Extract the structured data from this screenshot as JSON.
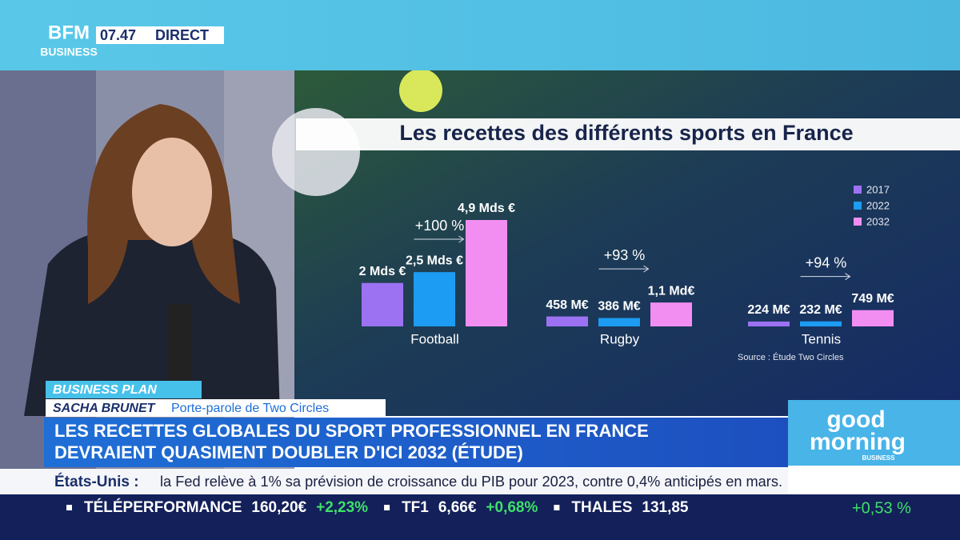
{
  "header": {
    "logo_top": "BFM",
    "logo_bottom": "BUSINESS",
    "time": "07.47",
    "status": "DIRECT"
  },
  "chart_data": {
    "type": "bar",
    "title": "Les recettes des différents sports en France",
    "categories": [
      "Football",
      "Rugby",
      "Tennis"
    ],
    "series": [
      {
        "name": "2017",
        "color": "#9d72f2",
        "values": [
          2000,
          458,
          224
        ],
        "value_labels": [
          "2 Mds €",
          "458 M€",
          "224 M€"
        ]
      },
      {
        "name": "2022",
        "color": "#1c9cf2",
        "values": [
          2500,
          386,
          232
        ],
        "value_labels": [
          "2,5 Mds €",
          "386 M€",
          "232 M€"
        ]
      },
      {
        "name": "2032",
        "color": "#f28ef2",
        "values": [
          4900,
          1100,
          749
        ],
        "value_labels": [
          "4,9 Mds €",
          "1,1 Md€",
          "749 M€"
        ]
      }
    ],
    "annotations": [
      "+100 %",
      "+93 %",
      "+94 %"
    ],
    "source": "Source : Étude Two Circles",
    "legend": "top-right"
  },
  "lower_third": {
    "program": "BUSINESS PLAN",
    "guest_name": "SACHA BRUNET",
    "guest_role": "Porte-parole de Two Circles",
    "headline": [
      "LES RECETTES GLOBALES DU SPORT PROFESSIONNEL EN FRANCE",
      "DEVRAIENT QUASIMENT DOUBLER D'ICI 2032 (ÉTUDE)"
    ]
  },
  "news_ticker": {
    "label": "États-Unis :",
    "text": "la Fed relève à 1% sa prévision de croissance du PIB pour 2023, contre 0,4% anticipés en mars."
  },
  "stock_ticker": [
    {
      "name": "TÉLÉPERFORMANCE",
      "price": "160,20€",
      "change": "+2,23%"
    },
    {
      "name": "TF1",
      "price": "6,66€",
      "change": "+0,68%"
    },
    {
      "name": "THALES",
      "price": "131,85"
    }
  ],
  "index_change": "+0,53 %",
  "show_logo": {
    "line1": "good",
    "line2": "morning",
    "line3": "BUSINESS"
  }
}
